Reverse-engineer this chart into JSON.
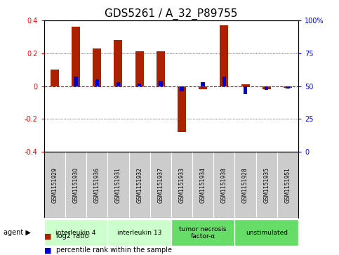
{
  "title": "GDS5261 / A_32_P89755",
  "samples": [
    "GSM1151929",
    "GSM1151930",
    "GSM1151936",
    "GSM1151931",
    "GSM1151932",
    "GSM1151937",
    "GSM1151933",
    "GSM1151934",
    "GSM1151938",
    "GSM1151928",
    "GSM1151935",
    "GSM1151951"
  ],
  "log2_ratio": [
    0.1,
    0.36,
    0.23,
    0.28,
    0.21,
    0.21,
    -0.28,
    -0.02,
    0.37,
    0.01,
    -0.02,
    -0.01
  ],
  "percentile_rank": [
    50,
    57,
    55,
    53,
    52,
    54,
    46,
    53,
    57,
    44,
    47,
    48
  ],
  "agents": [
    {
      "label": "interleukin 4",
      "start": 0,
      "end": 3,
      "color": "#ccffcc"
    },
    {
      "label": "interleukin 13",
      "start": 3,
      "end": 6,
      "color": "#ccffcc"
    },
    {
      "label": "tumor necrosis\nfactor-α",
      "start": 6,
      "end": 9,
      "color": "#66dd66"
    },
    {
      "label": "unstimulated",
      "start": 9,
      "end": 12,
      "color": "#66dd66"
    }
  ],
  "ylim": [
    -0.4,
    0.4
  ],
  "y2lim": [
    0,
    100
  ],
  "y_ticks": [
    -0.4,
    -0.2,
    0.0,
    0.2,
    0.4
  ],
  "y2_ticks": [
    0,
    25,
    50,
    75,
    100
  ],
  "bar_color": "#aa2200",
  "dot_color": "#0000cc",
  "zero_line_color": "#cc0000",
  "grid_color": "#000000",
  "bg_color": "#ffffff",
  "plot_bg": "#ffffff",
  "label_bg": "#cccccc",
  "tick_fontsize": 7,
  "title_fontsize": 11
}
